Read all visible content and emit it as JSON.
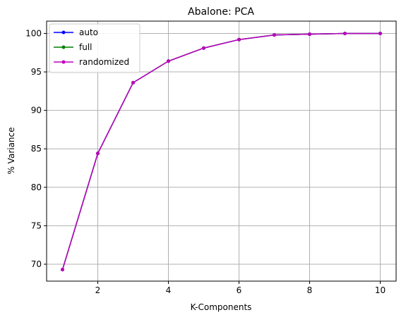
{
  "chart_data": {
    "type": "line",
    "title": "Abalone: PCA",
    "xlabel": "K-Components",
    "ylabel": "% Variance",
    "xlim": [
      0.55,
      10.45
    ],
    "ylim": [
      67.8,
      101.6
    ],
    "xticks": [
      2,
      4,
      6,
      8,
      10
    ],
    "yticks": [
      70,
      75,
      80,
      85,
      90,
      95,
      100
    ],
    "grid": true,
    "legend_position": "top-left",
    "x": [
      1,
      2,
      3,
      4,
      5,
      6,
      7,
      8,
      9,
      10
    ],
    "series": [
      {
        "name": "auto",
        "color": "#0000ff",
        "values": [
          69.3,
          84.4,
          93.6,
          96.4,
          98.1,
          99.2,
          99.8,
          99.9,
          100.0,
          100.0
        ]
      },
      {
        "name": "full",
        "color": "#008000",
        "values": [
          69.3,
          84.4,
          93.6,
          96.4,
          98.1,
          99.2,
          99.8,
          99.9,
          100.0,
          100.0
        ]
      },
      {
        "name": "randomized",
        "color": "#bf00bf",
        "values": [
          69.3,
          84.4,
          93.6,
          96.4,
          98.1,
          99.2,
          99.8,
          99.9,
          100.0,
          100.0
        ]
      }
    ]
  }
}
